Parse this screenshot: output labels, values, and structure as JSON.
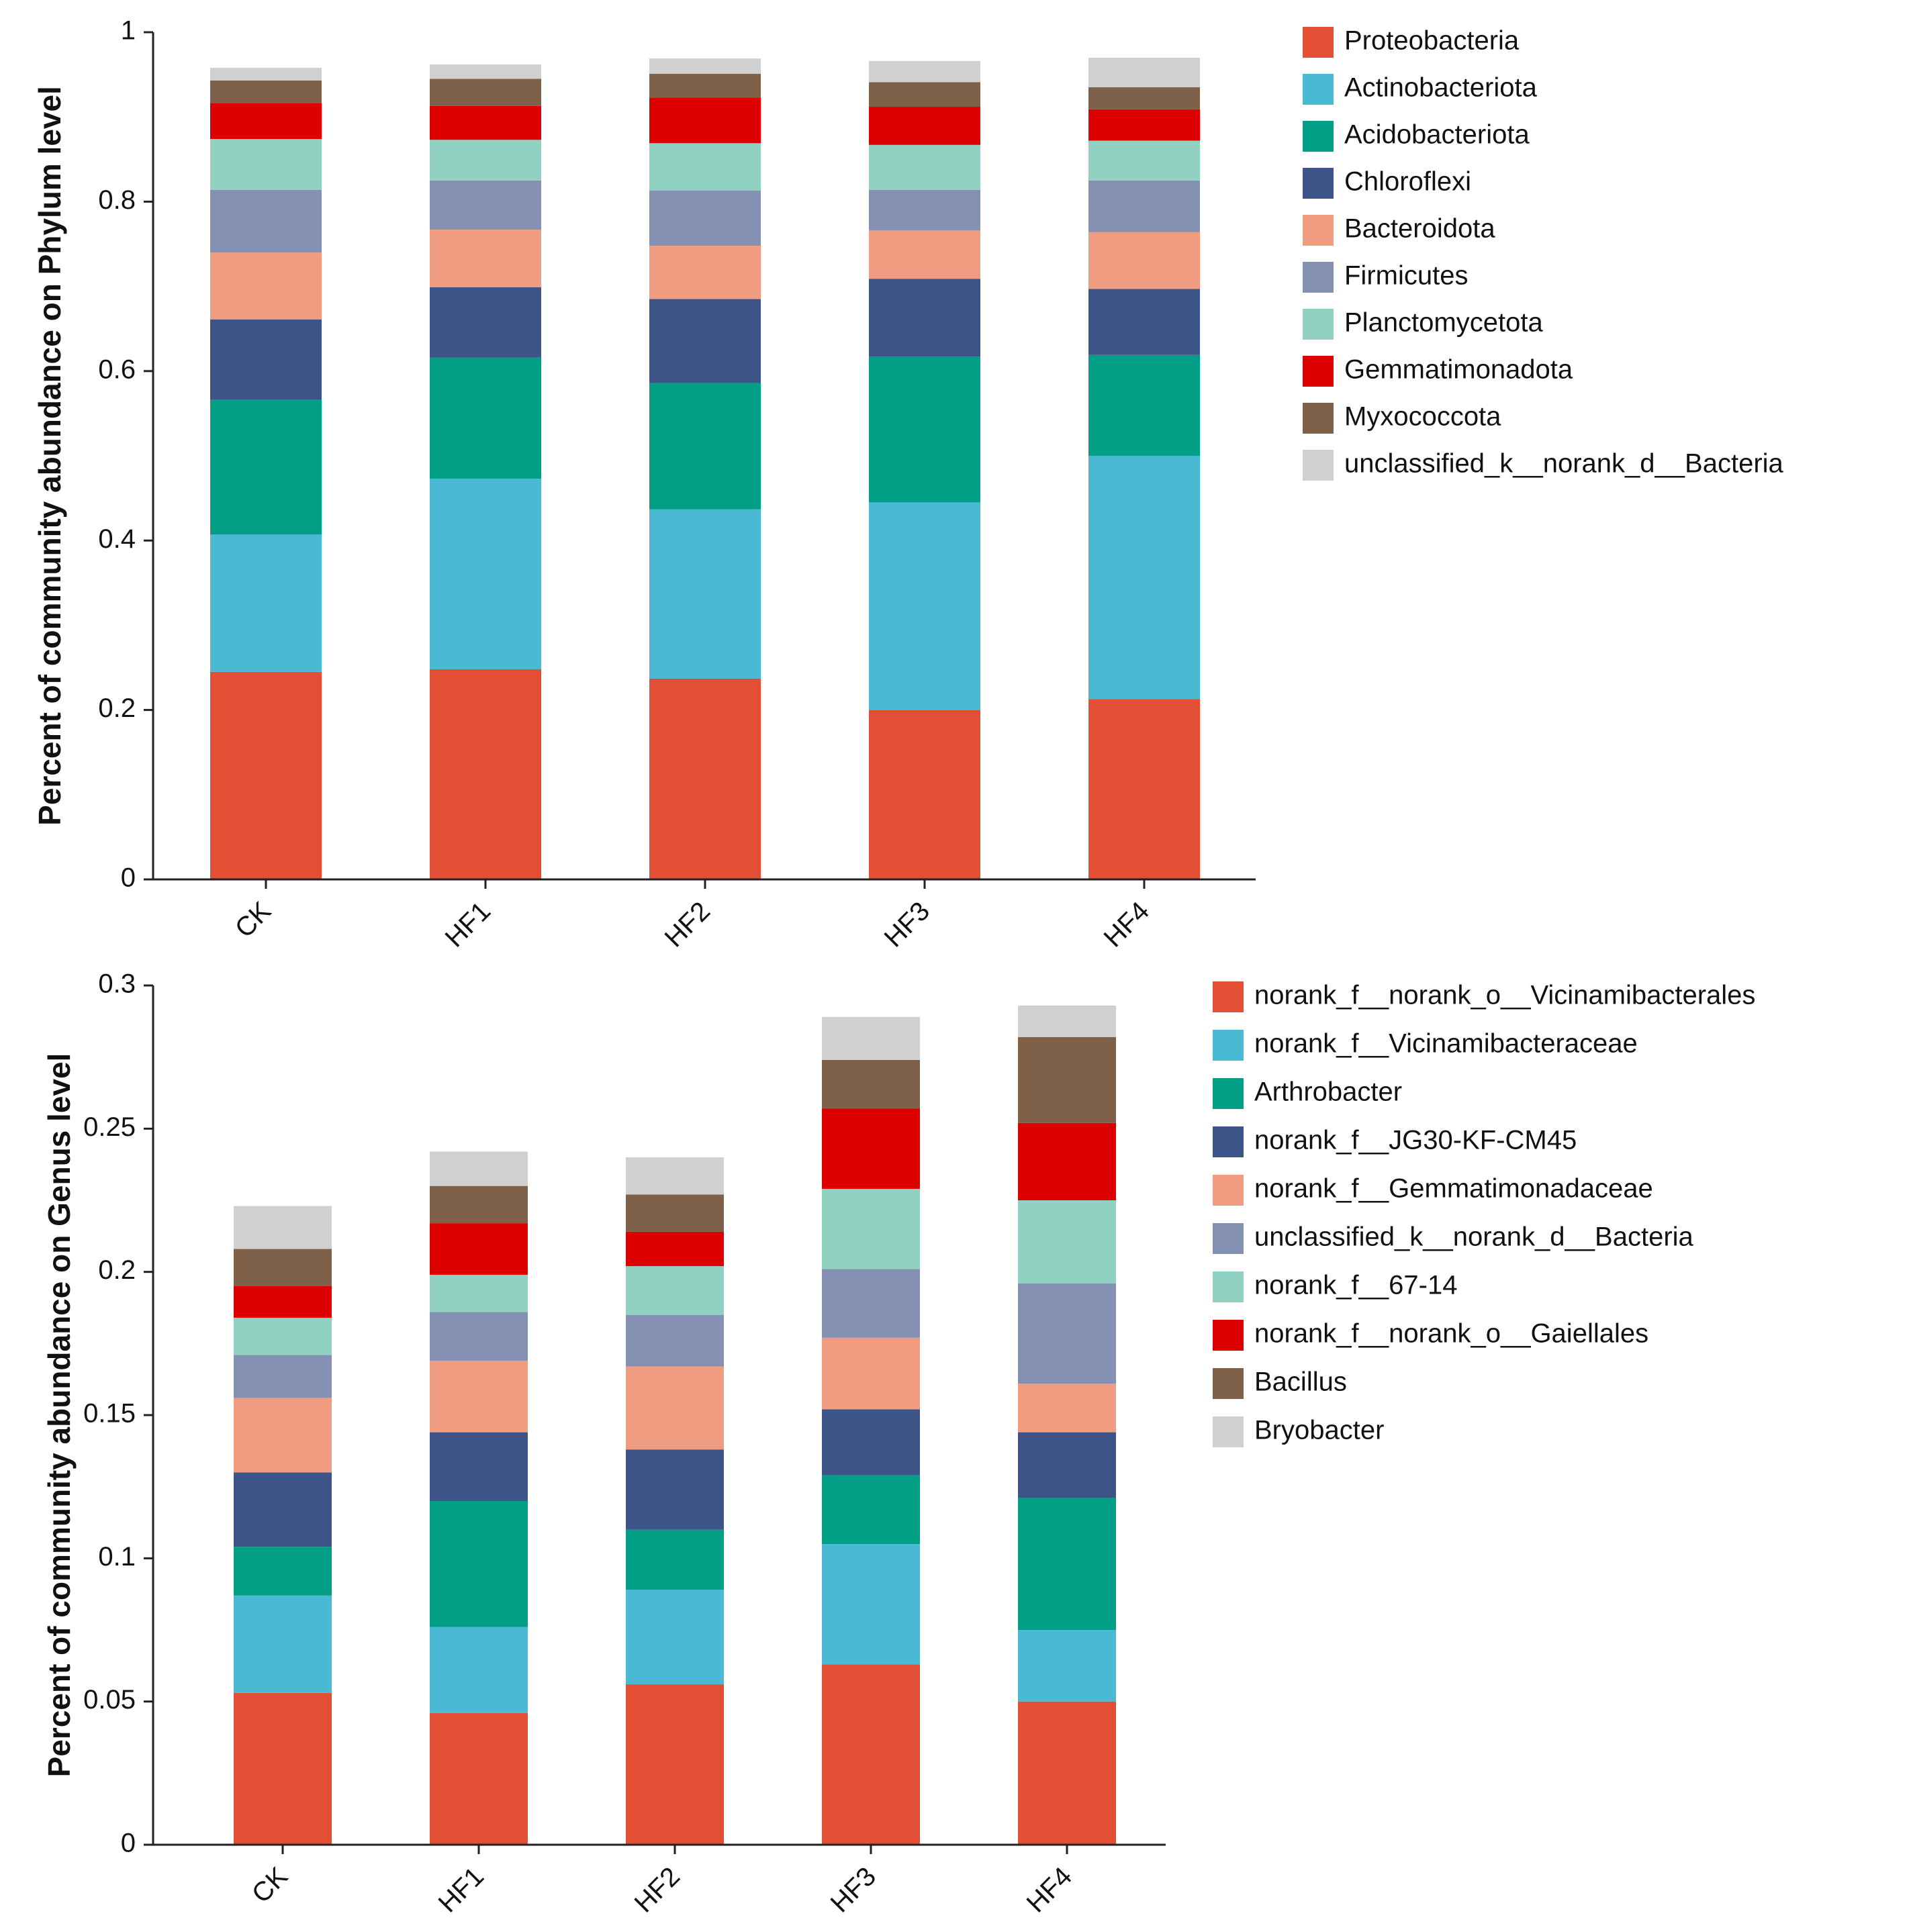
{
  "chart_data": [
    {
      "type": "bar",
      "stacked": true,
      "ylabel": "Percent of community abundance on Phylum level",
      "categories": [
        "CK",
        "HF1",
        "HF2",
        "HF3",
        "HF4"
      ],
      "ylim": [
        0,
        1
      ],
      "yticks": [
        "0",
        "0.2",
        "0.4",
        "0.6",
        "0.8",
        "1"
      ],
      "ytick_values": [
        0,
        0.2,
        0.4,
        0.6,
        0.8,
        1
      ],
      "legend_position": "right",
      "series": [
        {
          "name": "Proteobacteria",
          "color": "#e34f35",
          "values": [
            0.245,
            0.248,
            0.237,
            0.2,
            0.213
          ]
        },
        {
          "name": "Actinobacteriota",
          "color": "#4ab9d4",
          "values": [
            0.162,
            0.225,
            0.2,
            0.245,
            0.287
          ]
        },
        {
          "name": "Acidobacteriota",
          "color": "#029e86",
          "values": [
            0.159,
            0.143,
            0.149,
            0.172,
            0.119
          ]
        },
        {
          "name": "Chloroflexi",
          "color": "#3c5488",
          "values": [
            0.095,
            0.083,
            0.099,
            0.092,
            0.078
          ]
        },
        {
          "name": "Bacteroidota",
          "color": "#f09c80",
          "values": [
            0.079,
            0.068,
            0.063,
            0.057,
            0.067
          ]
        },
        {
          "name": "Firmicutes",
          "color": "#8491b3",
          "values": [
            0.074,
            0.058,
            0.065,
            0.048,
            0.061
          ]
        },
        {
          "name": "Planctomycetota",
          "color": "#91d1c2",
          "values": [
            0.06,
            0.048,
            0.056,
            0.053,
            0.047
          ]
        },
        {
          "name": "Gemmatimonadota",
          "color": "#dd0000",
          "values": [
            0.042,
            0.04,
            0.054,
            0.045,
            0.037
          ]
        },
        {
          "name": "Myxococcota",
          "color": "#7e6148",
          "values": [
            0.027,
            0.032,
            0.028,
            0.029,
            0.026
          ]
        },
        {
          "name": "unclassified_k__norank_d__Bacteria",
          "color": "#d0d0d0",
          "values": [
            0.015,
            0.017,
            0.018,
            0.025,
            0.035
          ]
        }
      ]
    },
    {
      "type": "bar",
      "stacked": true,
      "ylabel": "Percent of community abundance on Genus level",
      "categories": [
        "CK",
        "HF1",
        "HF2",
        "HF3",
        "HF4"
      ],
      "ylim": [
        0,
        0.3
      ],
      "yticks": [
        "0",
        "0.05",
        "0.1",
        "0.15",
        "0.2",
        "0.25",
        "0.3"
      ],
      "ytick_values": [
        0,
        0.05,
        0.1,
        0.15,
        0.2,
        0.25,
        0.3
      ],
      "legend_position": "right",
      "series": [
        {
          "name": "norank_f__norank_o__Vicinamibacterales",
          "color": "#e34f35",
          "values": [
            0.053,
            0.046,
            0.056,
            0.063,
            0.05
          ]
        },
        {
          "name": "norank_f__Vicinamibacteraceae",
          "color": "#4ab9d4",
          "values": [
            0.034,
            0.03,
            0.033,
            0.042,
            0.025
          ]
        },
        {
          "name": "Arthrobacter",
          "color": "#029e86",
          "values": [
            0.017,
            0.044,
            0.021,
            0.024,
            0.046
          ]
        },
        {
          "name": "norank_f__JG30-KF-CM45",
          "color": "#3c5488",
          "values": [
            0.026,
            0.024,
            0.028,
            0.023,
            0.023
          ]
        },
        {
          "name": "norank_f__Gemmatimonadaceae",
          "color": "#f09c80",
          "values": [
            0.026,
            0.025,
            0.029,
            0.025,
            0.017
          ]
        },
        {
          "name": "unclassified_k__norank_d__Bacteria",
          "color": "#8491b3",
          "values": [
            0.015,
            0.017,
            0.018,
            0.024,
            0.035
          ]
        },
        {
          "name": "norank_f__67-14",
          "color": "#91d1c2",
          "values": [
            0.013,
            0.013,
            0.017,
            0.028,
            0.029
          ]
        },
        {
          "name": "norank_f__norank_o__Gaiellales",
          "color": "#dd0000",
          "values": [
            0.011,
            0.018,
            0.012,
            0.028,
            0.027
          ]
        },
        {
          "name": "Bacillus",
          "color": "#7e6148",
          "values": [
            0.013,
            0.013,
            0.013,
            0.017,
            0.03
          ]
        },
        {
          "name": "Bryobacter",
          "color": "#d0d0d0",
          "values": [
            0.015,
            0.012,
            0.013,
            0.015,
            0.011
          ]
        }
      ]
    }
  ]
}
